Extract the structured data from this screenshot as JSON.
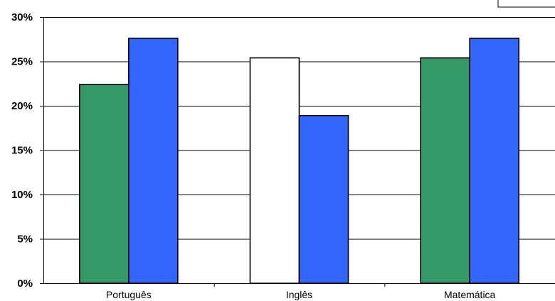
{
  "chart_data": {
    "type": "bar",
    "categories": [
      "Português",
      "Inglês",
      "Matemática"
    ],
    "series": [
      {
        "color": "#339966",
        "values": [
          22.4,
          25.4,
          25.4
        ],
        "fills": [
          "#339966",
          "#ffffff",
          "#339966"
        ]
      },
      {
        "color": "#3366ff",
        "values": [
          27.6,
          18.9,
          27.6
        ]
      }
    ],
    "ylim": [
      0,
      30
    ],
    "yticks": [
      0,
      5,
      10,
      15,
      20,
      25,
      30
    ],
    "ytick_labels": [
      "0%",
      "5%",
      "10%",
      "15%",
      "20%",
      "25%",
      "30%"
    ],
    "grid": true,
    "legend": "top-right",
    "title": "",
    "xlabel": "",
    "ylabel": ""
  }
}
